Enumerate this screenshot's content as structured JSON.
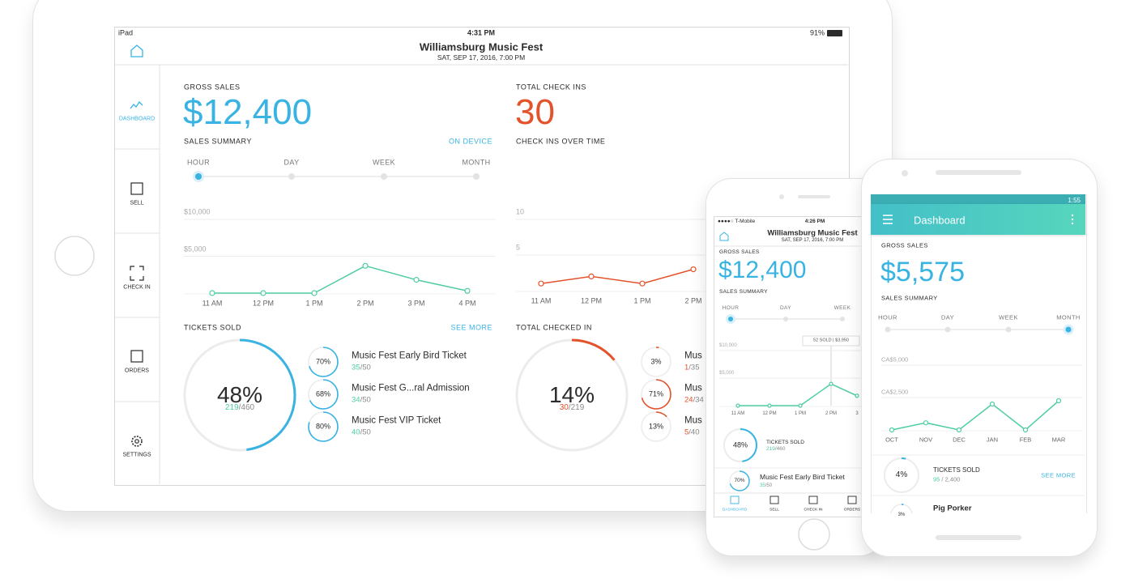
{
  "ipad": {
    "status": {
      "carrier": "iPad",
      "time": "4:31 PM",
      "battery": "91%"
    },
    "header": {
      "title": "Williamsburg Music Fest",
      "subtitle": "SAT, SEP 17, 2016, 7:00 PM"
    },
    "nav": [
      "DASHBOARD",
      "SELL",
      "CHECK IN",
      "ORDERS",
      "SETTINGS"
    ],
    "gross_sales": {
      "label": "GROSS SALES",
      "value": "$12,400"
    },
    "total_check_ins": {
      "label": "TOTAL CHECK INS",
      "value": "30"
    },
    "sales_summary": {
      "title": "SALES SUMMARY",
      "action": "ON DEVICE",
      "periods": [
        "HOUR",
        "DAY",
        "WEEK",
        "MONTH"
      ],
      "chart": {
        "ylim": [
          0,
          10000
        ],
        "yticks": [
          {
            "value": 10000,
            "label": "$10,000"
          },
          {
            "value": 5000,
            "label": "$5,000"
          }
        ],
        "categories": [
          "11 AM",
          "12 PM",
          "1 PM",
          "2 PM",
          "3 PM",
          "4 PM"
        ],
        "values": [
          0,
          0,
          0,
          3700,
          1800,
          300
        ]
      }
    },
    "check_ins_over_time": {
      "title": "CHECK INS OVER TIME",
      "chart": {
        "ylim": [
          0,
          10
        ],
        "yticks": [
          10,
          5
        ],
        "categories": [
          "11 AM",
          "12 PM",
          "1 PM",
          "2 PM"
        ],
        "values": [
          1,
          2,
          1,
          3
        ]
      }
    },
    "tickets_sold": {
      "title": "TICKETS SOLD",
      "action": "SEE MORE",
      "ring": {
        "value": 48,
        "label": "48%"
      },
      "sold": "219",
      "total": "/460",
      "items": [
        {
          "ring": {
            "value": 70,
            "label": "70%"
          },
          "name": "Music Fest Early Bird Ticket",
          "sold": "35",
          "total": "/50"
        },
        {
          "ring": {
            "value": 68,
            "label": "68%"
          },
          "name": "Music Fest G...ral Admission",
          "sold": "34",
          "total": "/50"
        },
        {
          "ring": {
            "value": 80,
            "label": "80%"
          },
          "name": "Music Fest VIP Ticket",
          "sold": "40",
          "total": "/50"
        }
      ]
    },
    "checked_in": {
      "title": "TOTAL CHECKED IN",
      "ring": {
        "value": 14,
        "label": "14%"
      },
      "sold": "30",
      "total": "/219",
      "items": [
        {
          "ring": {
            "value": 3,
            "label": "3%"
          },
          "name": "Mus",
          "sold": "1",
          "total": "/35"
        },
        {
          "ring": {
            "value": 71,
            "label": "71%"
          },
          "name": "Mus",
          "sold": "24",
          "total": "/34"
        },
        {
          "ring": {
            "value": 13,
            "label": "13%"
          },
          "name": "Mus",
          "sold": "5",
          "total": "/40"
        }
      ]
    }
  },
  "iphone": {
    "status": {
      "carrier": "●●●●○ T-Mobile",
      "time": "4:26 PM"
    },
    "header": {
      "title": "Williamsburg Music Fest",
      "subtitle": "SAT, SEP 17, 2016, 7:00 PM"
    },
    "gross_sales": {
      "label": "GROSS SALES",
      "value": "$12,400"
    },
    "sales_summary": {
      "title": "SALES SUMMARY",
      "periods": [
        "HOUR",
        "DAY",
        "WEEK"
      ],
      "tooltip": "52 SOLD | $3,950",
      "chart": {
        "ylim": [
          0,
          10000
        ],
        "yticks": [
          {
            "value": 10000,
            "label": "$10,000"
          },
          {
            "value": 5000,
            "label": "$5,000"
          }
        ],
        "categories": [
          "11 AM",
          "12 PM",
          "1 PM",
          "2 PM",
          "3"
        ],
        "values": [
          0,
          0,
          0,
          3950,
          1800
        ]
      }
    },
    "tickets_sold": {
      "title": "TICKETS SOLD",
      "ring": {
        "value": 48,
        "label": "48%"
      },
      "sold": "219",
      "total": "/460",
      "items": [
        {
          "ring": {
            "value": 70,
            "label": "70%"
          },
          "name": "Music Fest Early Bird Ticket",
          "sold": "35",
          "total": "/50"
        }
      ]
    },
    "tabs": [
      "DASHBOARD",
      "SELL",
      "CHECK IN",
      "ORDERS"
    ]
  },
  "android": {
    "status": {
      "time": "1:55"
    },
    "app_bar": {
      "title": "Dashboard"
    },
    "gross_sales": {
      "label": "GROSS SALES",
      "value": "$5,575"
    },
    "sales_summary": {
      "title": "SALES SUMMARY",
      "periods": [
        "HOUR",
        "DAY",
        "WEEK",
        "MONTH"
      ],
      "chart": {
        "ylim": [
          0,
          5000
        ],
        "yticks": [
          {
            "value": 5000,
            "label": "CA$5,000"
          },
          {
            "value": 2500,
            "label": "CA$2,500"
          }
        ],
        "categories": [
          "OCT",
          "NOV",
          "DEC",
          "JAN",
          "FEB",
          "MAR"
        ],
        "values": [
          0,
          550,
          0,
          2000,
          0,
          2250
        ]
      }
    },
    "tickets_sold": {
      "title": "TICKETS SOLD",
      "action": "SEE MORE",
      "ring": {
        "value": 4,
        "label": "4%"
      },
      "sold": "95",
      "total": " / 2,400",
      "items": [
        {
          "ring": {
            "value": 3,
            "label": "3%"
          },
          "name": "Pig Porker"
        }
      ]
    }
  }
}
